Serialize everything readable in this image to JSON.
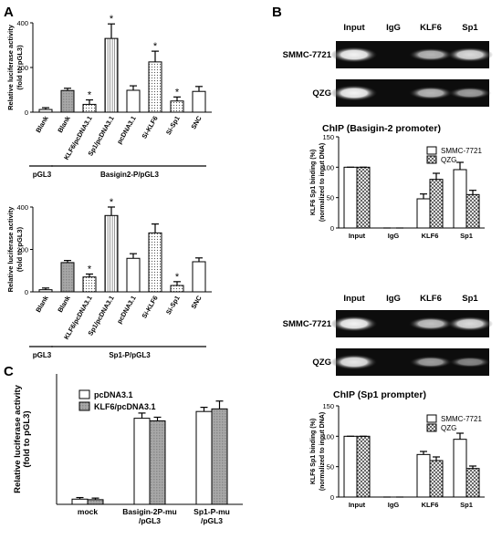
{
  "panel_letters": [
    "A",
    "B",
    "C"
  ],
  "chart_data": [
    {
      "id": "A1",
      "type": "bar",
      "ylabel": [
        "Relative luciferase activity",
        "(fold to pGL3)"
      ],
      "ylim": [
        0,
        400
      ],
      "yticks": [
        0,
        200,
        400
      ],
      "categories": [
        "Blank",
        "Blank",
        "KLF6/pcDNA3.1",
        "Sp1/pcDNA3.1",
        "pcDNA3.1",
        "Si-KLF6",
        "Si-Sp1",
        "SNC"
      ],
      "values": [
        12,
        97,
        35,
        330,
        98,
        225,
        50,
        93
      ],
      "errors": [
        8,
        10,
        20,
        65,
        20,
        48,
        18,
        22
      ],
      "significant": [
        false,
        false,
        true,
        true,
        false,
        true,
        true,
        false
      ],
      "fills": [
        "white",
        "gray",
        "dots",
        "vlines",
        "white",
        "dots",
        "dots",
        "white"
      ],
      "groups": [
        {
          "label": "pGL3",
          "from": 0,
          "to": 0
        },
        {
          "label": "Basigin2-P/pGL3",
          "from": 1,
          "to": 7
        }
      ]
    },
    {
      "id": "A2",
      "type": "bar",
      "ylabel": [
        "Relative luciferase activity",
        "(fold to pGL3)"
      ],
      "ylim": [
        0,
        400
      ],
      "yticks": [
        0,
        200,
        400
      ],
      "categories": [
        "Blank",
        "Blank",
        "KLF6/pcDNA3.1",
        "Sp1/pcDNA3.1",
        "pcDNA3.1",
        "Si-KLF6",
        "Si-Sp1",
        "SNC"
      ],
      "values": [
        10,
        138,
        70,
        360,
        158,
        278,
        30,
        142
      ],
      "errors": [
        8,
        10,
        14,
        40,
        22,
        42,
        18,
        18
      ],
      "significant": [
        false,
        false,
        true,
        true,
        false,
        false,
        true,
        false
      ],
      "fills": [
        "white",
        "gray",
        "dots",
        "vlines",
        "white",
        "dots",
        "dots",
        "white"
      ],
      "groups": [
        {
          "label": "pGL3",
          "from": 0,
          "to": 0
        },
        {
          "label": "Sp1-P/pGL3",
          "from": 1,
          "to": 7
        }
      ]
    },
    {
      "id": "B1",
      "type": "bar",
      "title": "ChIP (Basigin-2 promoter)",
      "ylabel": [
        "KLF6 Sp1 binding (%)",
        "(normalized to input DNA)"
      ],
      "ylim": [
        0,
        150
      ],
      "yticks": [
        0,
        50,
        100,
        150
      ],
      "categories": [
        "Input",
        "IgG",
        "KLF6",
        "Sp1"
      ],
      "series": [
        {
          "name": "SMMC-7721",
          "values": [
            100,
            0,
            48,
            96
          ],
          "errors": [
            0,
            0,
            8,
            12
          ]
        },
        {
          "name": "QZG",
          "values": [
            100,
            0,
            80,
            55
          ],
          "errors": [
            0,
            0,
            10,
            7
          ]
        }
      ],
      "legend": "top-right"
    },
    {
      "id": "B2",
      "type": "bar",
      "title": "ChIP (Sp1 prompter)",
      "ylabel": [
        "KLF6 Sp1 binding (%)",
        "(normalized to input DNA)"
      ],
      "ylim": [
        0,
        150
      ],
      "yticks": [
        0,
        50,
        100,
        150
      ],
      "categories": [
        "Input",
        "IgG",
        "KLF6",
        "Sp1"
      ],
      "series": [
        {
          "name": "SMMC-7721",
          "values": [
            100,
            0,
            70,
            95
          ],
          "errors": [
            0,
            0,
            5,
            10
          ]
        },
        {
          "name": "QZG",
          "values": [
            100,
            0,
            60,
            47
          ],
          "errors": [
            0,
            0,
            6,
            4
          ]
        }
      ],
      "legend": "top-right"
    },
    {
      "id": "C",
      "type": "bar",
      "ylabel": [
        "Relative luciferase activity",
        "(fold to pGL3)"
      ],
      "ylim": [
        0,
        250
      ],
      "yticks": [],
      "categories": [
        "mock",
        "Basigin-2P-mu\n/pGL3",
        "Sp1-P-mu\n/pGL3"
      ],
      "series": [
        {
          "name": "pcDNA3.1",
          "values": [
            10,
            165,
            178
          ],
          "errors": [
            3,
            10,
            8
          ]
        },
        {
          "name": "KLF6/pcDNA3.1",
          "values": [
            9,
            160,
            183
          ],
          "errors": [
            3,
            7,
            15
          ]
        }
      ],
      "legend": "top-left"
    }
  ],
  "gels": [
    {
      "id": "gel1",
      "lane_labels": [
        "Input",
        "IgG",
        "KLF6",
        "Sp1"
      ],
      "rows": [
        {
          "label": "SMMC-7721",
          "intensity": [
            0.95,
            0,
            0.7,
            0.85
          ]
        },
        {
          "label": "QZG",
          "intensity": [
            0.95,
            0,
            0.7,
            0.6
          ]
        }
      ]
    },
    {
      "id": "gel2",
      "lane_labels": [
        "Input",
        "IgG",
        "KLF6",
        "Sp1"
      ],
      "rows": [
        {
          "label": "SMMC-7721",
          "intensity": [
            0.95,
            0,
            0.75,
            0.85
          ]
        },
        {
          "label": "QZG",
          "intensity": [
            0.9,
            0,
            0.6,
            0.5
          ]
        }
      ]
    }
  ]
}
